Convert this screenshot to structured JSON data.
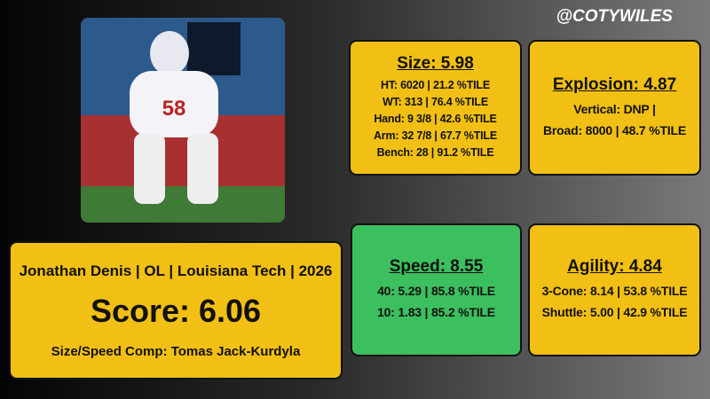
{
  "handle": "@COTYWILES",
  "player": {
    "line": "Jonathan Denis | OL | Louisiana Tech | 2026",
    "score": "Score: 6.06",
    "comp": "Size/Speed Comp: Tomas Jack-Kurdyla"
  },
  "cards": [
    {
      "title": "Size: 5.98",
      "lines": [
        "HT: 6020 | 21.2 %TILE",
        "WT: 313 | 76.4 %TILE",
        "Hand: 9 3/8 | 42.6 %TILE",
        "Arm: 32 7/8 | 67.7 %TILE",
        "Bench: 28 | 91.2 %TILE"
      ]
    },
    {
      "title": "Explosion: 4.87",
      "lines": [
        "Vertical: DNP |",
        "Broad: 8000 | 48.7 %TILE"
      ]
    },
    {
      "title": "Speed: 8.55",
      "lines": [
        "40: 5.29 | 85.8 %TILE",
        "10: 1.83 | 85.2 %TILE"
      ]
    },
    {
      "title": "Agility: 4.84",
      "lines": [
        "3-Cone: 8.14 | 53.8 %TILE",
        "Shuttle: 5.00 | 42.9 %TILE"
      ]
    }
  ]
}
